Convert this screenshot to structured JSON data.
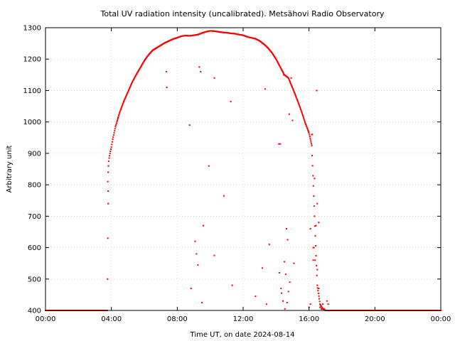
{
  "chart_data": {
    "type": "scatter",
    "title": "Total UV radiation intensity (uncalibrated). Metsähovi Radio Observatory",
    "xlabel": "Time UT, on date 2024-08-14",
    "ylabel": "Arbitrary unit",
    "xlim": [
      "00:00",
      "24:00"
    ],
    "ylim": [
      400,
      1300
    ],
    "x_ticks": [
      "00:00",
      "04:00",
      "08:00",
      "12:00",
      "16:00",
      "20:00",
      "00:00"
    ],
    "y_ticks": [
      400,
      500,
      600,
      700,
      800,
      900,
      1000,
      1100,
      1200,
      1300
    ],
    "grid": true,
    "marker_color": "#ff0000",
    "series": [
      {
        "x": [
          "00:00",
          "00:30",
          "01:00",
          "01:30",
          "02:00",
          "02:30",
          "03:00",
          "03:30",
          "03:45",
          "03:47",
          "03:48",
          "03:49",
          "03:50",
          "03:52",
          "03:55",
          "04:00",
          "04:05",
          "04:10",
          "04:15",
          "04:20",
          "04:30",
          "04:45",
          "05:00",
          "05:15",
          "05:30",
          "05:45",
          "06:00",
          "06:15",
          "06:30",
          "06:45",
          "07:00",
          "07:15",
          "07:30",
          "07:45",
          "08:00",
          "08:15",
          "08:30",
          "08:45",
          "09:00",
          "09:15",
          "09:30",
          "09:45",
          "10:00",
          "10:15",
          "10:30",
          "10:45",
          "11:00",
          "11:15",
          "11:30",
          "11:45",
          "12:00",
          "12:15",
          "12:30",
          "12:45",
          "13:00",
          "13:15",
          "13:30",
          "13:45",
          "14:00",
          "14:15",
          "14:30",
          "14:45",
          "15:00",
          "15:15",
          "15:30",
          "15:45",
          "16:00",
          "16:10",
          "16:20",
          "16:30",
          "16:40",
          "16:50",
          "17:00",
          "17:30",
          "18:00",
          "18:30",
          "19:00",
          "19:30",
          "20:00",
          "20:30",
          "21:00",
          "21:30",
          "22:00",
          "22:30",
          "23:00",
          "23:30",
          "24:00",
          "03:46",
          "03:47",
          "03:48",
          "03:48",
          "07:20",
          "07:22",
          "08:45",
          "08:50",
          "09:05",
          "09:10",
          "09:15",
          "09:20",
          "09:25",
          "09:30",
          "09:35",
          "09:55",
          "10:15",
          "10:15",
          "10:50",
          "11:15",
          "11:20",
          "12:45",
          "13:10",
          "13:20",
          "13:25",
          "13:35",
          "14:10",
          "14:12",
          "14:15",
          "14:18",
          "14:20",
          "14:25",
          "14:28",
          "14:30",
          "14:32",
          "14:35",
          "14:38",
          "14:40",
          "14:42",
          "14:45",
          "14:48",
          "14:50",
          "14:55",
          "15:00",
          "15:05",
          "16:00",
          "16:05",
          "16:10",
          "16:12",
          "16:15",
          "16:18",
          "16:20",
          "16:25",
          "16:28",
          "16:30",
          "16:35",
          "16:40",
          "16:45",
          "16:50",
          "16:55",
          "17:00",
          "17:05",
          "17:10",
          "16:05",
          "16:15",
          "16:22",
          "16:30",
          "16:35"
        ],
        "y": [
          400,
          400,
          400,
          400,
          400,
          400,
          400,
          400,
          400,
          810,
          840,
          860,
          875,
          885,
          900,
          920,
          945,
          965,
          985,
          1000,
          1030,
          1065,
          1095,
          1125,
          1150,
          1172,
          1195,
          1213,
          1228,
          1236,
          1244,
          1252,
          1258,
          1264,
          1268,
          1273,
          1275,
          1274,
          1276,
          1278,
          1283,
          1287,
          1290,
          1289,
          1287,
          1285,
          1284,
          1282,
          1281,
          1278,
          1276,
          1271,
          1268,
          1265,
          1258,
          1248,
          1236,
          1220,
          1200,
          1175,
          1150,
          1140,
          1108,
          1075,
          1040,
          1000,
          965,
          925,
          700,
          480,
          420,
          405,
          400,
          400,
          400,
          400,
          400,
          400,
          400,
          400,
          400,
          400,
          400,
          400,
          400,
          400,
          400,
          500,
          630,
          740,
          780,
          1160,
          1110,
          990,
          470,
          620,
          580,
          545,
          1175,
          1160,
          425,
          670,
          860,
          575,
          1140,
          765,
          1065,
          480,
          445,
          535,
          1105,
          420,
          610,
          930,
          520,
          930,
          470,
          455,
          430,
          1150,
          555,
          405,
          515,
          660,
          425,
          625,
          460,
          1025,
          490,
          1140,
          1005,
          550,
          410,
          420,
          960,
          960,
          560,
          600,
          820,
          670,
          1100,
          740,
          680,
          410,
          405,
          420,
          405,
          400,
          430,
          420,
          660,
          600,
          560,
          530,
          470
        ]
      }
    ]
  }
}
